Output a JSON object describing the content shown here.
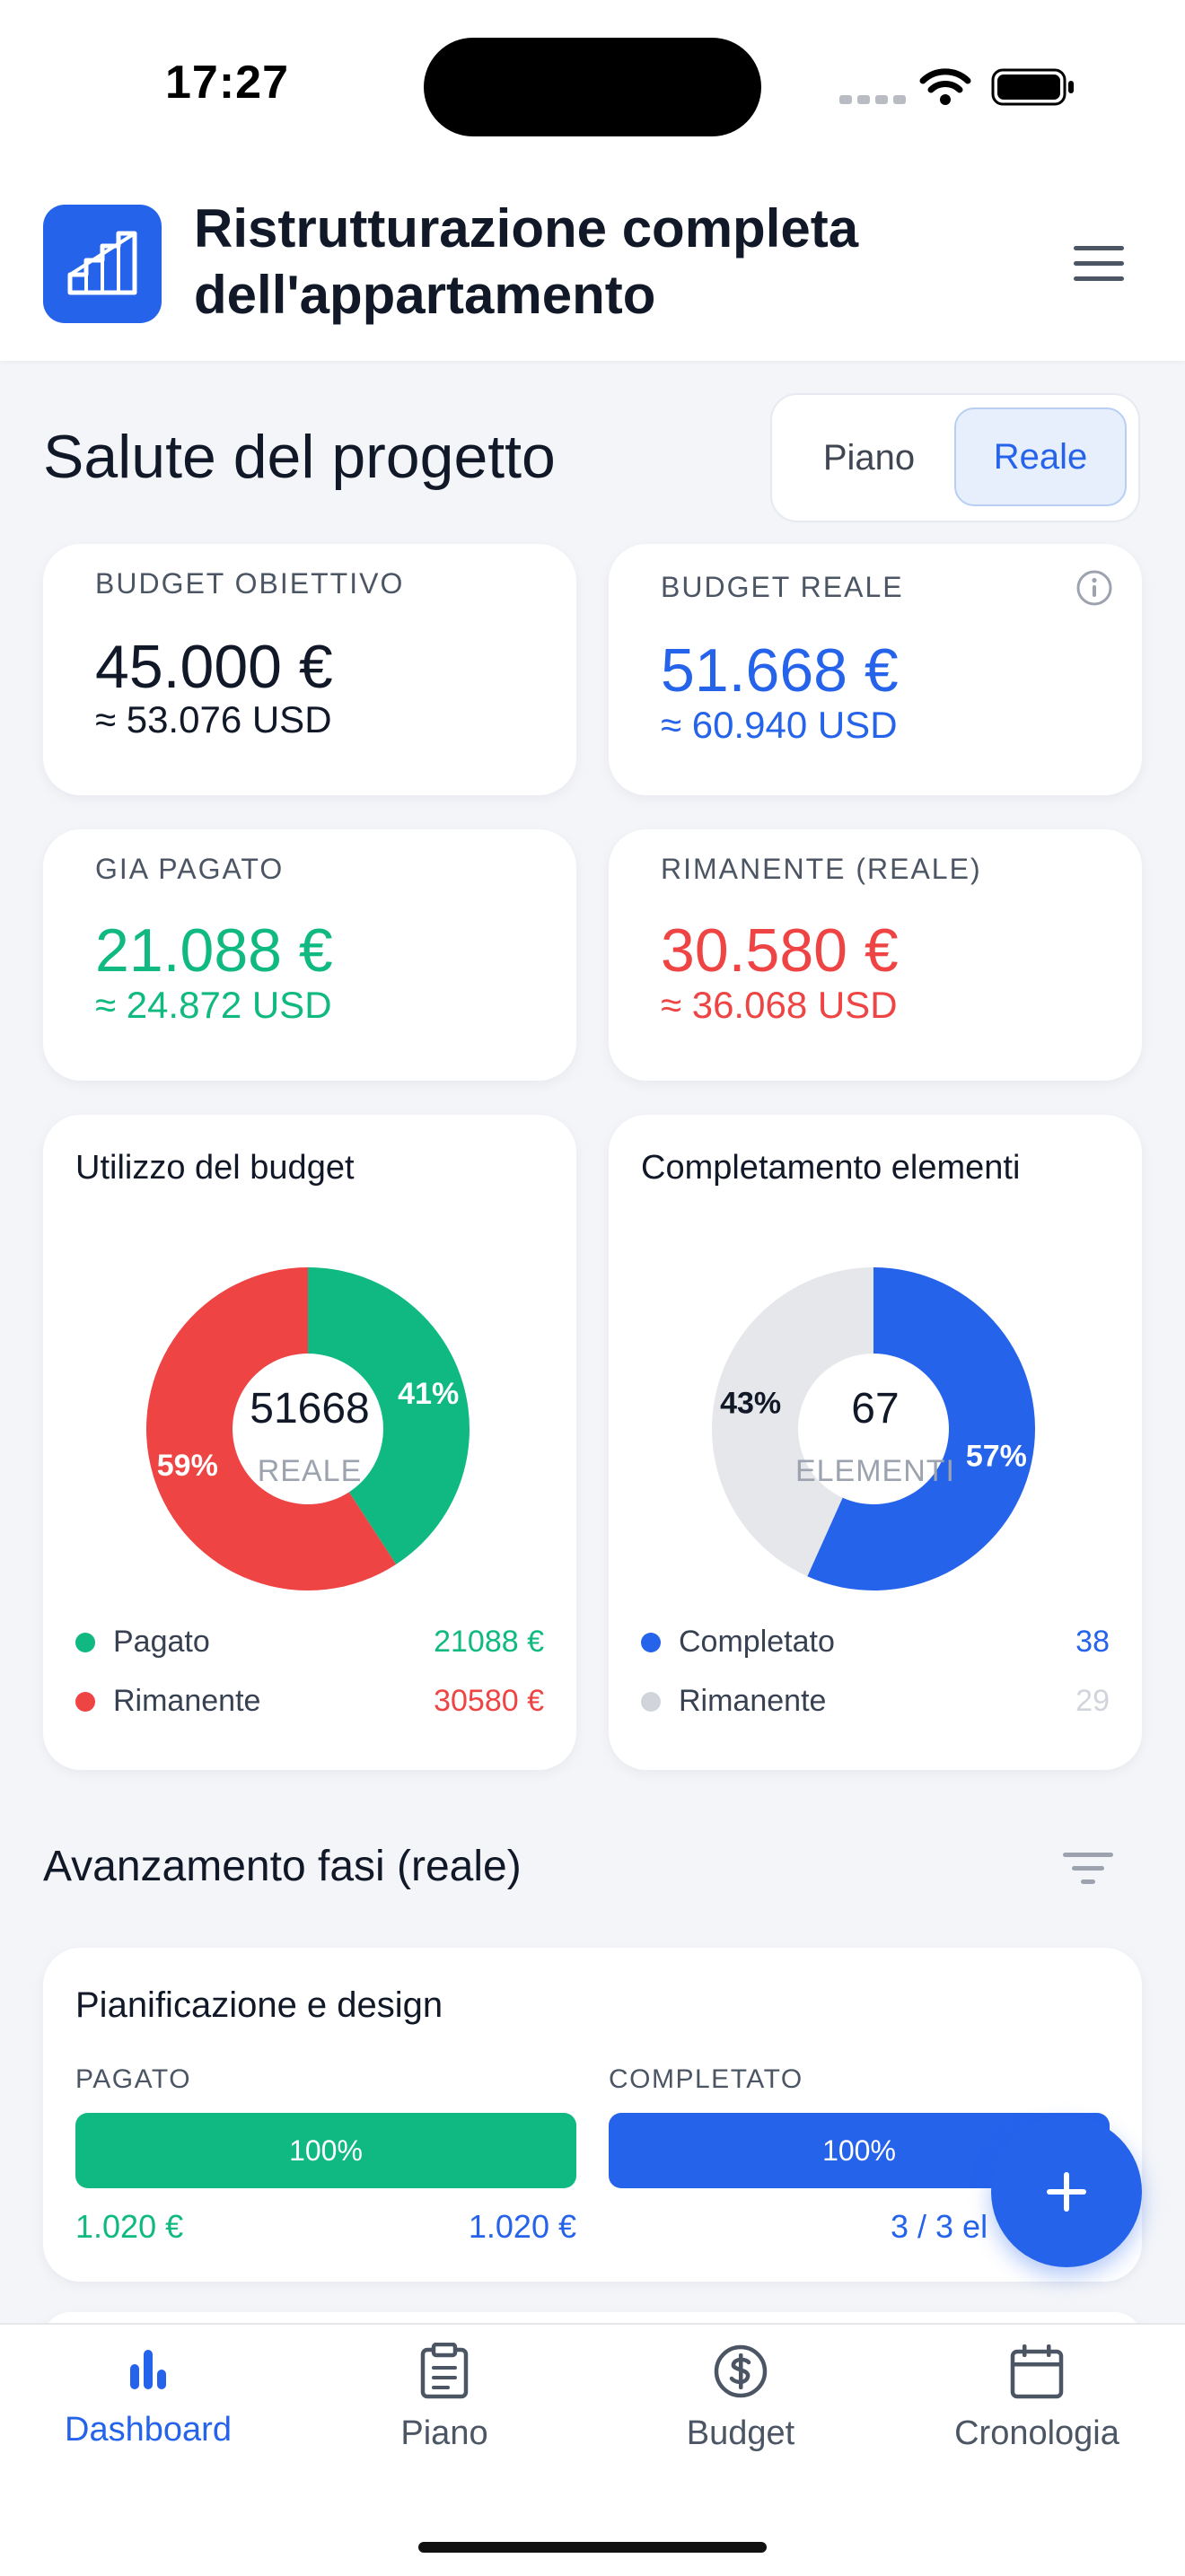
{
  "status_bar": {
    "time": "17:27"
  },
  "header": {
    "title": "Ristrutturazione completa dell'appartamento",
    "app_icon": "stairs-building-icon",
    "menu_icon": "hamburger-menu-icon"
  },
  "health": {
    "title": "Salute del progetto",
    "toggle": {
      "options": [
        "Piano",
        "Reale"
      ],
      "selected": "Reale"
    }
  },
  "kpis": {
    "target": {
      "label": "BUDGET OBIETTIVO",
      "value": "45.000 €",
      "converted": "≈ 53.076 USD",
      "color": "#111827"
    },
    "real": {
      "label": "BUDGET REALE",
      "value": "51.668 €",
      "converted": "≈ 60.940 USD",
      "color": "#2563eb"
    },
    "paid": {
      "label": "GIA PAGATO",
      "value": "21.088 €",
      "converted": "≈ 24.872 USD",
      "color": "#10b981"
    },
    "remaining": {
      "label": "RIMANENTE (REALE)",
      "value": "30.580 €",
      "converted": "≈ 36.068 USD",
      "color": "#ef4444"
    }
  },
  "budget_chart": {
    "title": "Utilizzo del budget",
    "center_value": "51668",
    "center_label": "REALE",
    "slice_labels": [
      "41%",
      "59%"
    ],
    "legend": [
      {
        "label": "Pagato",
        "value": "21088 €",
        "color": "#10b981"
      },
      {
        "label": "Rimanente",
        "value": "30580 €",
        "color": "#ef4444"
      }
    ]
  },
  "items_chart": {
    "title": "Completamento elementi",
    "center_value": "67",
    "center_label": "ELEMENTI",
    "slice_labels": [
      "57%",
      "43%"
    ],
    "legend": [
      {
        "label": "Completato",
        "value": "38",
        "color": "#2563eb"
      },
      {
        "label": "Rimanente",
        "value": "29",
        "color": "#d1d5db"
      }
    ]
  },
  "chart_data": [
    {
      "type": "pie",
      "title": "Utilizzo del budget",
      "categories": [
        "Pagato",
        "Rimanente"
      ],
      "values": [
        21088,
        30580
      ],
      "percent_labels": [
        "41%",
        "59%"
      ],
      "total": 51668,
      "colors": [
        "#10b981",
        "#ef4444"
      ]
    },
    {
      "type": "pie",
      "title": "Completamento elementi",
      "categories": [
        "Completato",
        "Rimanente"
      ],
      "values": [
        38,
        29
      ],
      "percent_labels": [
        "57%",
        "43%"
      ],
      "total": 67,
      "colors": [
        "#2563eb",
        "#e5e7eb"
      ]
    }
  ],
  "phases": {
    "title": "Avanzamento fasi (reale)",
    "filter_icon": "filter-icon",
    "items": [
      {
        "name": "Pianificazione e design",
        "paid_label": "PAGATO",
        "paid_percent": "100%",
        "paid_fraction": 1.0,
        "paid_amount": "1.020 €",
        "paid_total": "1.020 €",
        "completed_label": "COMPLETATO",
        "completed_percent": "100%",
        "completed_fraction": 1.0,
        "completed_count": "3 / 3 el"
      }
    ]
  },
  "fab": {
    "icon": "plus-icon"
  },
  "tabs": [
    {
      "label": "Dashboard",
      "icon": "bar-chart-icon",
      "active": true
    },
    {
      "label": "Piano",
      "icon": "clipboard-icon",
      "active": false
    },
    {
      "label": "Budget",
      "icon": "dollar-circle-icon",
      "active": false
    },
    {
      "label": "Cronologia",
      "icon": "calendar-icon",
      "active": false
    }
  ]
}
